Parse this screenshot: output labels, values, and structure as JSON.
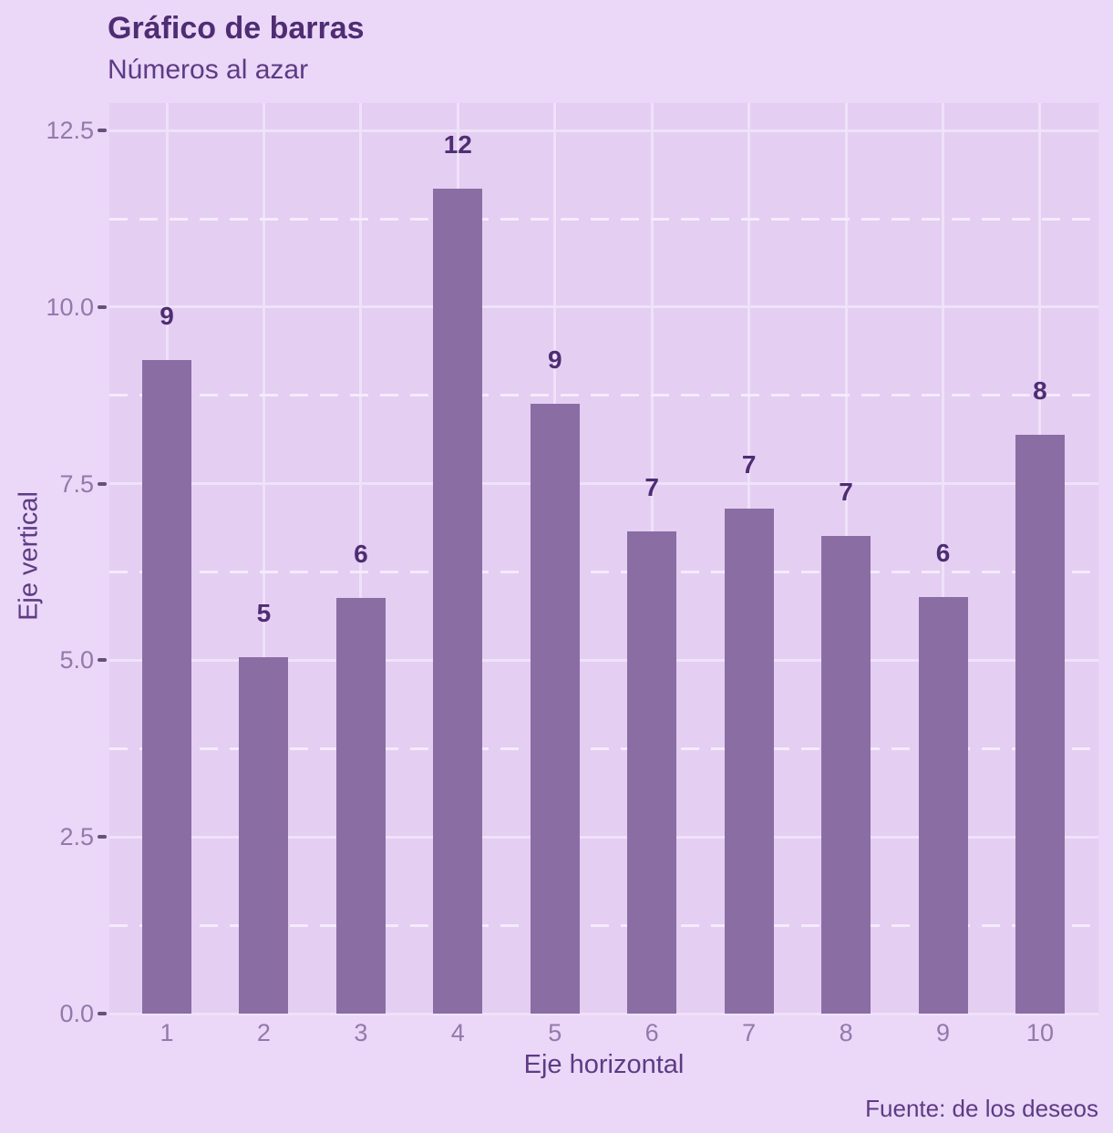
{
  "chart_data": {
    "type": "bar",
    "title": "Gráfico de barras",
    "subtitle": "Números al azar",
    "caption": "Fuente: de los deseos",
    "xlabel": "Eje horizontal",
    "ylabel": "Eje vertical",
    "categories": [
      "1",
      "2",
      "3",
      "4",
      "5",
      "6",
      "7",
      "8",
      "9",
      "10"
    ],
    "values": [
      9.25,
      5.05,
      5.88,
      11.68,
      8.63,
      6.83,
      7.15,
      6.76,
      5.9,
      8.19
    ],
    "bar_labels": [
      "9",
      "5",
      "6",
      "12",
      "9",
      "7",
      "7",
      "7",
      "6",
      "8"
    ],
    "ylim": [
      0,
      12.89
    ],
    "yticks": [
      0,
      2.5,
      5,
      7.5,
      10,
      12.5
    ],
    "ytick_labels": [
      "0.0",
      "2.5",
      "5.0",
      "7.5",
      "10.0",
      "12.5"
    ],
    "yticks_minor": [
      1.25,
      3.75,
      6.25,
      8.75,
      11.25
    ],
    "grid": "horizontal major solid + minor dashed; vertical major solid at bar centers",
    "legend": "none",
    "colors": {
      "background": "#ebd7f7",
      "panel": "#e4cef2",
      "gridMajor": "#efe2f9",
      "gridMinor": "#f4ebfc",
      "bar": "#8a6da3",
      "titleText": "#4e2d73",
      "subtitleText": "#5d3b85",
      "tickLabel": "#917aab",
      "tickMark": "#64527a",
      "barLabel": "#4e2d73"
    }
  }
}
